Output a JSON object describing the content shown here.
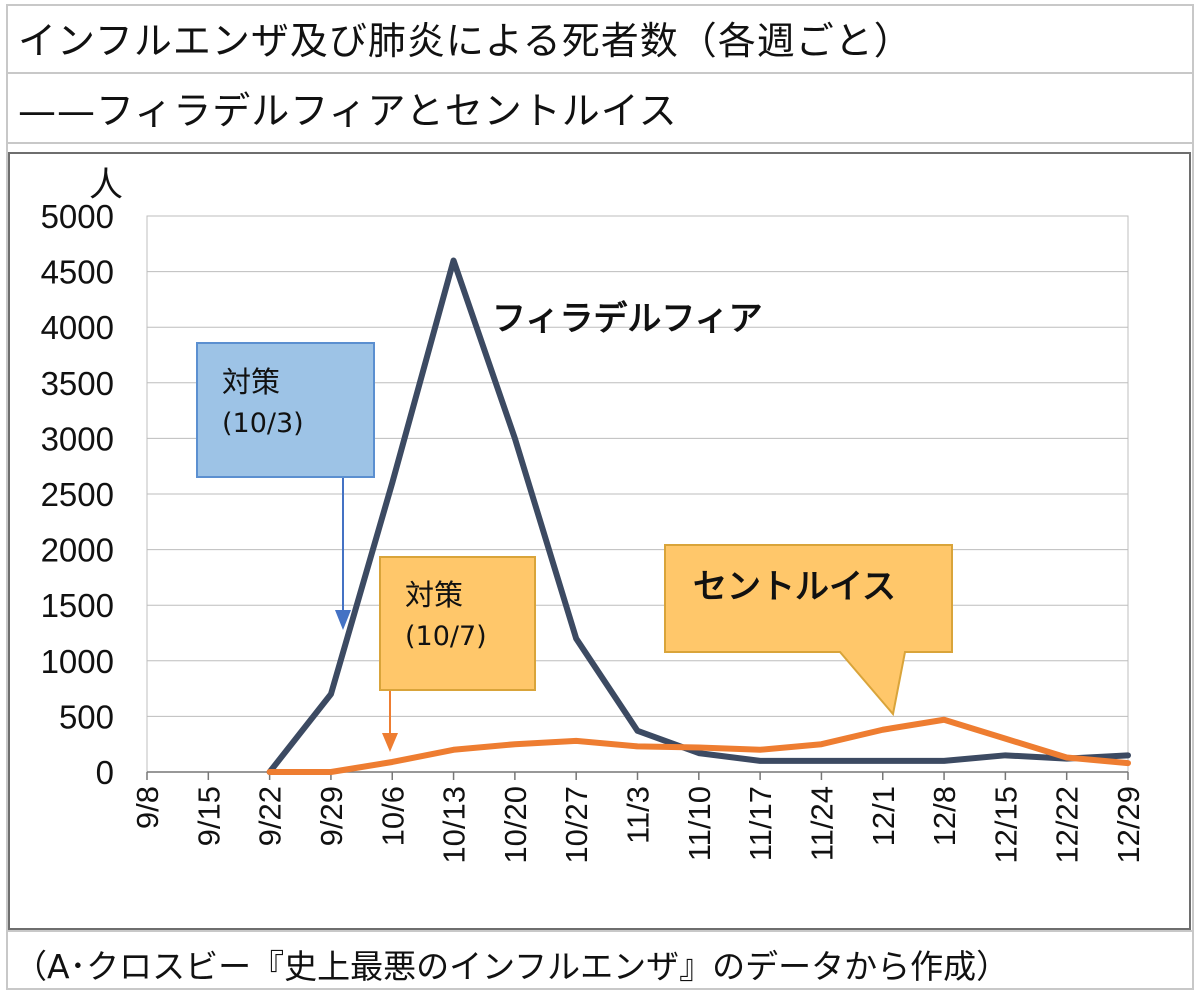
{
  "title_line1": "インフルエンザ及び肺炎による死者数（各週ごと）",
  "title_line2": "——フィラデルフィアとセントルイス",
  "source": "（A･クロスビー『史上最悪のインフルエンザ』のデータから作成）",
  "chart_data": {
    "type": "line",
    "y_unit": "人",
    "ylim": [
      0,
      5000
    ],
    "yticks": [
      0,
      500,
      1000,
      1500,
      2000,
      2500,
      3000,
      3500,
      4000,
      4500,
      5000
    ],
    "categories": [
      "9/8",
      "9/15",
      "9/22",
      "9/29",
      "10/6",
      "10/13",
      "10/20",
      "10/27",
      "11/3",
      "11/10",
      "11/17",
      "11/24",
      "12/1",
      "12/8",
      "12/15",
      "12/22",
      "12/29"
    ],
    "grid": true,
    "series": [
      {
        "name": "フィラデルフィア",
        "color": "#3c4a62",
        "values": [
          null,
          null,
          0,
          700,
          2600,
          4600,
          3000,
          1200,
          370,
          170,
          100,
          100,
          100,
          100,
          150,
          120,
          150
        ]
      },
      {
        "name": "セントルイス",
        "color": "#ee7d31",
        "values": [
          null,
          null,
          0,
          0,
          90,
          200,
          250,
          280,
          230,
          220,
          200,
          250,
          380,
          470,
          300,
          130,
          80
        ]
      }
    ],
    "annotations": [
      {
        "text_line1": "対策",
        "text_line2": "(10/3)",
        "color": "#9dc3e6",
        "border": "#5b8fd0",
        "arrow_color": "#4472c4"
      },
      {
        "text_line1": "対策",
        "text_line2": "(10/7)",
        "color": "#ffc76a",
        "border": "#d9a43a",
        "arrow_color": "#ee7d31"
      }
    ]
  }
}
